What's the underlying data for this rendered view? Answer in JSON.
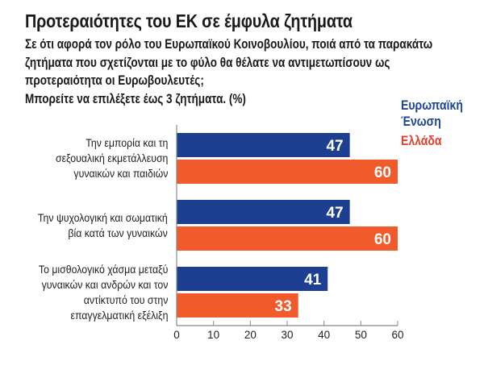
{
  "title": "Προτεραιότητες του ΕΚ σε έμφυλα ζητήματα",
  "subtitle_lines": [
    "Σε ότι αφορά τον ρόλο του Ευρωπαϊκού Κοινοβουλίου, ποιά από τα παρακάτω",
    "ζητήματα που σχετίζονται με το φύλο θα θέλατε να αντιμετωπίσουν ως",
    "προτεραιότητα οι Ευρωβουλευτές;",
    "Μπορείτε να επιλέξετε έως 3 ζητήματα. (%)"
  ],
  "legend": {
    "eu_line1": "Ευρωπαϊκή",
    "eu_line2": "Ένωση",
    "gr": "Ελλάδα"
  },
  "colors": {
    "eu": "#1d3f91",
    "gr": "#f15a2b",
    "eu_text": "#1d4596",
    "gr_text": "#e8402a",
    "axis": "#888888"
  },
  "chart_data": {
    "type": "bar",
    "orientation": "horizontal",
    "title": "Προτεραιότητες του ΕΚ σε έμφυλα ζητήματα",
    "xlabel": "",
    "ylabel": "",
    "xlim": [
      0,
      60
    ],
    "xticks": [
      0,
      10,
      20,
      30,
      40,
      50,
      60
    ],
    "grid": false,
    "legend_position": "top-right",
    "categories": [
      [
        "Την εμπορία και τη",
        "σεξουαλική εκμετάλλευση",
        "γυναικών και παιδιών"
      ],
      [
        "Την ψυχολογική και σωματική",
        "βία κατά των γυναικών"
      ],
      [
        "Το μισθολογικό χάσμα μεταξύ",
        "γυναικών και ανδρών και τον",
        "αντίκτυπό του στην",
        "επαγγελματική εξέλιξη"
      ]
    ],
    "series": [
      {
        "name": "Ευρωπαϊκή Ένωση",
        "values": [
          47,
          47,
          41
        ]
      },
      {
        "name": "Ελλάδα",
        "values": [
          60,
          60,
          33
        ]
      }
    ]
  }
}
